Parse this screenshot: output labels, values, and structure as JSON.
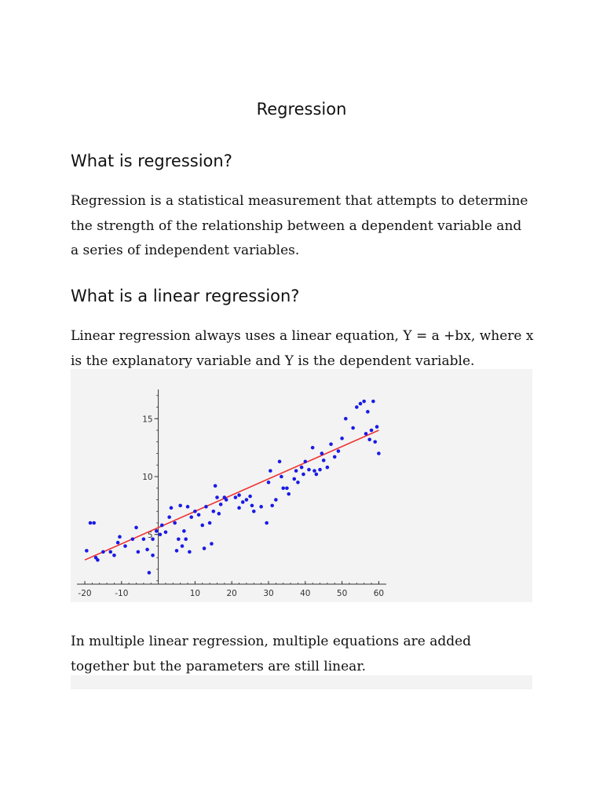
{
  "document": {
    "title": "Regression",
    "section1": {
      "heading": "What is regression?",
      "lines": [
        "Regression is a statistical measurement that attempts to determine",
        "the strength of the relationship between a dependent variable and",
        "a series of independent variables."
      ]
    },
    "section2": {
      "heading": "What is a linear regression?",
      "lines": [
        "Linear regression always uses a linear equation, Y = a +bx, where x",
        "is the explanatory variable and Y is the dependent variable."
      ]
    },
    "section3": {
      "lines": [
        "In multiple linear regression, multiple equations are added",
        "together but the parameters are still linear."
      ]
    }
  },
  "chart_data": {
    "type": "scatter",
    "title": "",
    "xlabel": "",
    "ylabel": "",
    "xlim": [
      -22,
      61
    ],
    "ylim": [
      0,
      17.5
    ],
    "grid": false,
    "x_ticks": [
      "-20",
      "-10",
      "10",
      "20",
      "30",
      "40",
      "50",
      "60"
    ],
    "y_ticks": [
      "15",
      "10",
      "5"
    ],
    "point_color": "#1a1ae6",
    "fit_color": "#ee3333",
    "fit_line": {
      "x": [
        -20,
        60
      ],
      "y": [
        2.8,
        14.0
      ]
    },
    "points": [
      {
        "x": -19.5,
        "y": 3.6
      },
      {
        "x": -18.5,
        "y": 6.0
      },
      {
        "x": -17.5,
        "y": 6.0
      },
      {
        "x": -17,
        "y": 3.0
      },
      {
        "x": -16.5,
        "y": 2.8
      },
      {
        "x": -15,
        "y": 3.5
      },
      {
        "x": -13,
        "y": 3.5
      },
      {
        "x": -12,
        "y": 3.2
      },
      {
        "x": -11,
        "y": 4.3
      },
      {
        "x": -10.5,
        "y": 4.8
      },
      {
        "x": -9,
        "y": 4.0
      },
      {
        "x": -7,
        "y": 4.6
      },
      {
        "x": -6,
        "y": 5.6
      },
      {
        "x": -5.5,
        "y": 3.5
      },
      {
        "x": -4,
        "y": 4.6
      },
      {
        "x": -3,
        "y": 3.7
      },
      {
        "x": -2.5,
        "y": 1.7
      },
      {
        "x": -1.5,
        "y": 4.6
      },
      {
        "x": -1.5,
        "y": 3.2
      },
      {
        "x": -0.5,
        "y": 5.3
      },
      {
        "x": 0.5,
        "y": 5.0
      },
      {
        "x": 1,
        "y": 5.8
      },
      {
        "x": 2,
        "y": 5.2
      },
      {
        "x": 3,
        "y": 6.5
      },
      {
        "x": 3.5,
        "y": 7.3
      },
      {
        "x": 4.5,
        "y": 6.0
      },
      {
        "x": 5,
        "y": 3.6
      },
      {
        "x": 5.5,
        "y": 4.6
      },
      {
        "x": 6,
        "y": 7.5
      },
      {
        "x": 6.5,
        "y": 4.0
      },
      {
        "x": 7,
        "y": 5.3
      },
      {
        "x": 7.5,
        "y": 4.6
      },
      {
        "x": 8,
        "y": 7.4
      },
      {
        "x": 8.5,
        "y": 3.5
      },
      {
        "x": 9,
        "y": 6.5
      },
      {
        "x": 10,
        "y": 7.0
      },
      {
        "x": 11,
        "y": 6.7
      },
      {
        "x": 12,
        "y": 5.8
      },
      {
        "x": 12.5,
        "y": 3.8
      },
      {
        "x": 13,
        "y": 7.4
      },
      {
        "x": 14,
        "y": 6.0
      },
      {
        "x": 14.5,
        "y": 4.2
      },
      {
        "x": 15,
        "y": 7.0
      },
      {
        "x": 15.5,
        "y": 9.2
      },
      {
        "x": 16,
        "y": 8.2
      },
      {
        "x": 16.5,
        "y": 6.8
      },
      {
        "x": 17,
        "y": 7.6
      },
      {
        "x": 18,
        "y": 8.2
      },
      {
        "x": 18.5,
        "y": 8.0
      },
      {
        "x": 21,
        "y": 8.2
      },
      {
        "x": 22,
        "y": 8.4
      },
      {
        "x": 22,
        "y": 7.3
      },
      {
        "x": 23,
        "y": 7.8
      },
      {
        "x": 24,
        "y": 8.0
      },
      {
        "x": 25,
        "y": 8.3
      },
      {
        "x": 25.5,
        "y": 7.5
      },
      {
        "x": 26,
        "y": 7.0
      },
      {
        "x": 28,
        "y": 7.4
      },
      {
        "x": 29.5,
        "y": 6.0
      },
      {
        "x": 30,
        "y": 9.5
      },
      {
        "x": 30.5,
        "y": 10.5
      },
      {
        "x": 31,
        "y": 7.5
      },
      {
        "x": 32,
        "y": 8.0
      },
      {
        "x": 33,
        "y": 11.3
      },
      {
        "x": 33.5,
        "y": 10.0
      },
      {
        "x": 34,
        "y": 9.0
      },
      {
        "x": 35,
        "y": 9.0
      },
      {
        "x": 35.5,
        "y": 8.5
      },
      {
        "x": 37,
        "y": 9.8
      },
      {
        "x": 37.5,
        "y": 10.5
      },
      {
        "x": 38,
        "y": 9.5
      },
      {
        "x": 39,
        "y": 10.8
      },
      {
        "x": 39.5,
        "y": 10.2
      },
      {
        "x": 40,
        "y": 11.3
      },
      {
        "x": 41,
        "y": 10.6
      },
      {
        "x": 42,
        "y": 12.5
      },
      {
        "x": 42.5,
        "y": 10.5
      },
      {
        "x": 43,
        "y": 10.2
      },
      {
        "x": 44,
        "y": 10.6
      },
      {
        "x": 45,
        "y": 11.4
      },
      {
        "x": 46,
        "y": 10.8
      },
      {
        "x": 47,
        "y": 12.8
      },
      {
        "x": 48,
        "y": 11.7
      },
      {
        "x": 49,
        "y": 12.2
      },
      {
        "x": 50,
        "y": 13.3
      },
      {
        "x": 51,
        "y": 15.0
      },
      {
        "x": 53,
        "y": 14.2
      },
      {
        "x": 54,
        "y": 16.0
      },
      {
        "x": 55,
        "y": 16.3
      },
      {
        "x": 56,
        "y": 16.5
      },
      {
        "x": 56.5,
        "y": 13.7
      },
      {
        "x": 57,
        "y": 15.6
      },
      {
        "x": 57.5,
        "y": 13.2
      },
      {
        "x": 58,
        "y": 14.0
      },
      {
        "x": 58.5,
        "y": 16.5
      },
      {
        "x": 59,
        "y": 13.0
      },
      {
        "x": 60,
        "y": 12.0
      },
      {
        "x": 59.5,
        "y": 14.3
      },
      {
        "x": 44.5,
        "y": 12.0
      }
    ]
  }
}
